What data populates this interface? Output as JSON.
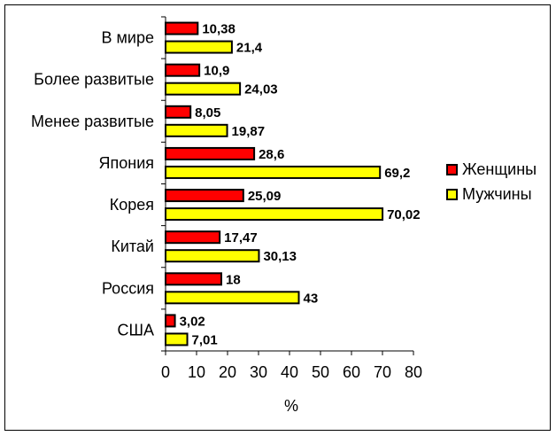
{
  "chart_data": {
    "type": "bar",
    "orientation": "horizontal",
    "categories": [
      "В мире",
      "Более развитые",
      "Менее развитые",
      "Япония",
      "Корея",
      "Китай",
      "Россия",
      "США"
    ],
    "series": [
      {
        "name": "Женщины",
        "color": "#ff0000",
        "values": [
          10.38,
          10.9,
          8.05,
          28.6,
          25.09,
          17.47,
          18,
          3.02
        ],
        "labels": [
          "10,38",
          "10,9",
          "8,05",
          "28,6",
          "25,09",
          "17,47",
          "18",
          "3,02"
        ]
      },
      {
        "name": "Мужчины",
        "color": "#ffff00",
        "values": [
          21.4,
          24.03,
          19.87,
          69.2,
          70.02,
          30.13,
          43,
          7.01
        ],
        "labels": [
          "21,4",
          "24,03",
          "19,87",
          "69,2",
          "70,02",
          "30,13",
          "43",
          "7,01"
        ]
      }
    ],
    "xlabel": "%",
    "xlim": [
      0,
      80
    ],
    "xticks": [
      "0",
      "10",
      "20",
      "30",
      "40",
      "50",
      "60",
      "70",
      "80"
    ],
    "legend_position": "right",
    "grid": false
  }
}
